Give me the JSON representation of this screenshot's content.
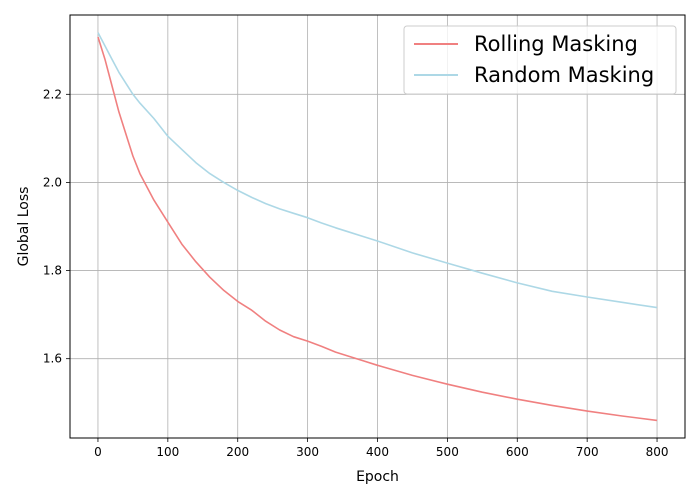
{
  "chart_data": {
    "type": "line",
    "title": "",
    "xlabel": "Epoch",
    "ylabel": "Global Loss",
    "xlim": [
      -40,
      840
    ],
    "ylim": [
      1.42,
      2.38
    ],
    "xticks": [
      0,
      100,
      200,
      300,
      400,
      500,
      600,
      700,
      800
    ],
    "xtick_labels": [
      "0",
      "100",
      "200",
      "300",
      "400",
      "500",
      "600",
      "700",
      "800"
    ],
    "yticks": [
      1.6,
      1.8,
      2.0,
      2.2
    ],
    "ytick_labels": [
      "1.6",
      "1.8",
      "2.0",
      "2.2"
    ],
    "grid": true,
    "legend_position": "top-right",
    "series": [
      {
        "name": "Rolling Masking",
        "color": "#f08080",
        "x": [
          0,
          10,
          20,
          30,
          40,
          50,
          60,
          80,
          100,
          120,
          140,
          160,
          180,
          200,
          220,
          240,
          260,
          280,
          300,
          320,
          340,
          360,
          380,
          400,
          450,
          500,
          550,
          600,
          650,
          700,
          750,
          800
        ],
        "y": [
          2.33,
          2.28,
          2.22,
          2.16,
          2.11,
          2.06,
          2.02,
          1.96,
          1.91,
          1.86,
          1.82,
          1.785,
          1.755,
          1.73,
          1.71,
          1.685,
          1.665,
          1.65,
          1.64,
          1.628,
          1.615,
          1.605,
          1.595,
          1.585,
          1.562,
          1.542,
          1.524,
          1.508,
          1.494,
          1.481,
          1.47,
          1.46
        ]
      },
      {
        "name": "Random Masking",
        "color": "#add8e6",
        "x": [
          0,
          10,
          20,
          30,
          40,
          50,
          60,
          80,
          100,
          120,
          140,
          160,
          180,
          200,
          220,
          240,
          260,
          280,
          300,
          320,
          340,
          360,
          380,
          400,
          450,
          500,
          550,
          600,
          650,
          700,
          750,
          800
        ],
        "y": [
          2.34,
          2.31,
          2.28,
          2.25,
          2.225,
          2.2,
          2.18,
          2.145,
          2.105,
          2.075,
          2.045,
          2.02,
          2.0,
          1.982,
          1.966,
          1.952,
          1.94,
          1.93,
          1.92,
          1.908,
          1.897,
          1.887,
          1.877,
          1.867,
          1.84,
          1.817,
          1.794,
          1.772,
          1.753,
          1.74,
          1.728,
          1.716
        ]
      }
    ]
  }
}
